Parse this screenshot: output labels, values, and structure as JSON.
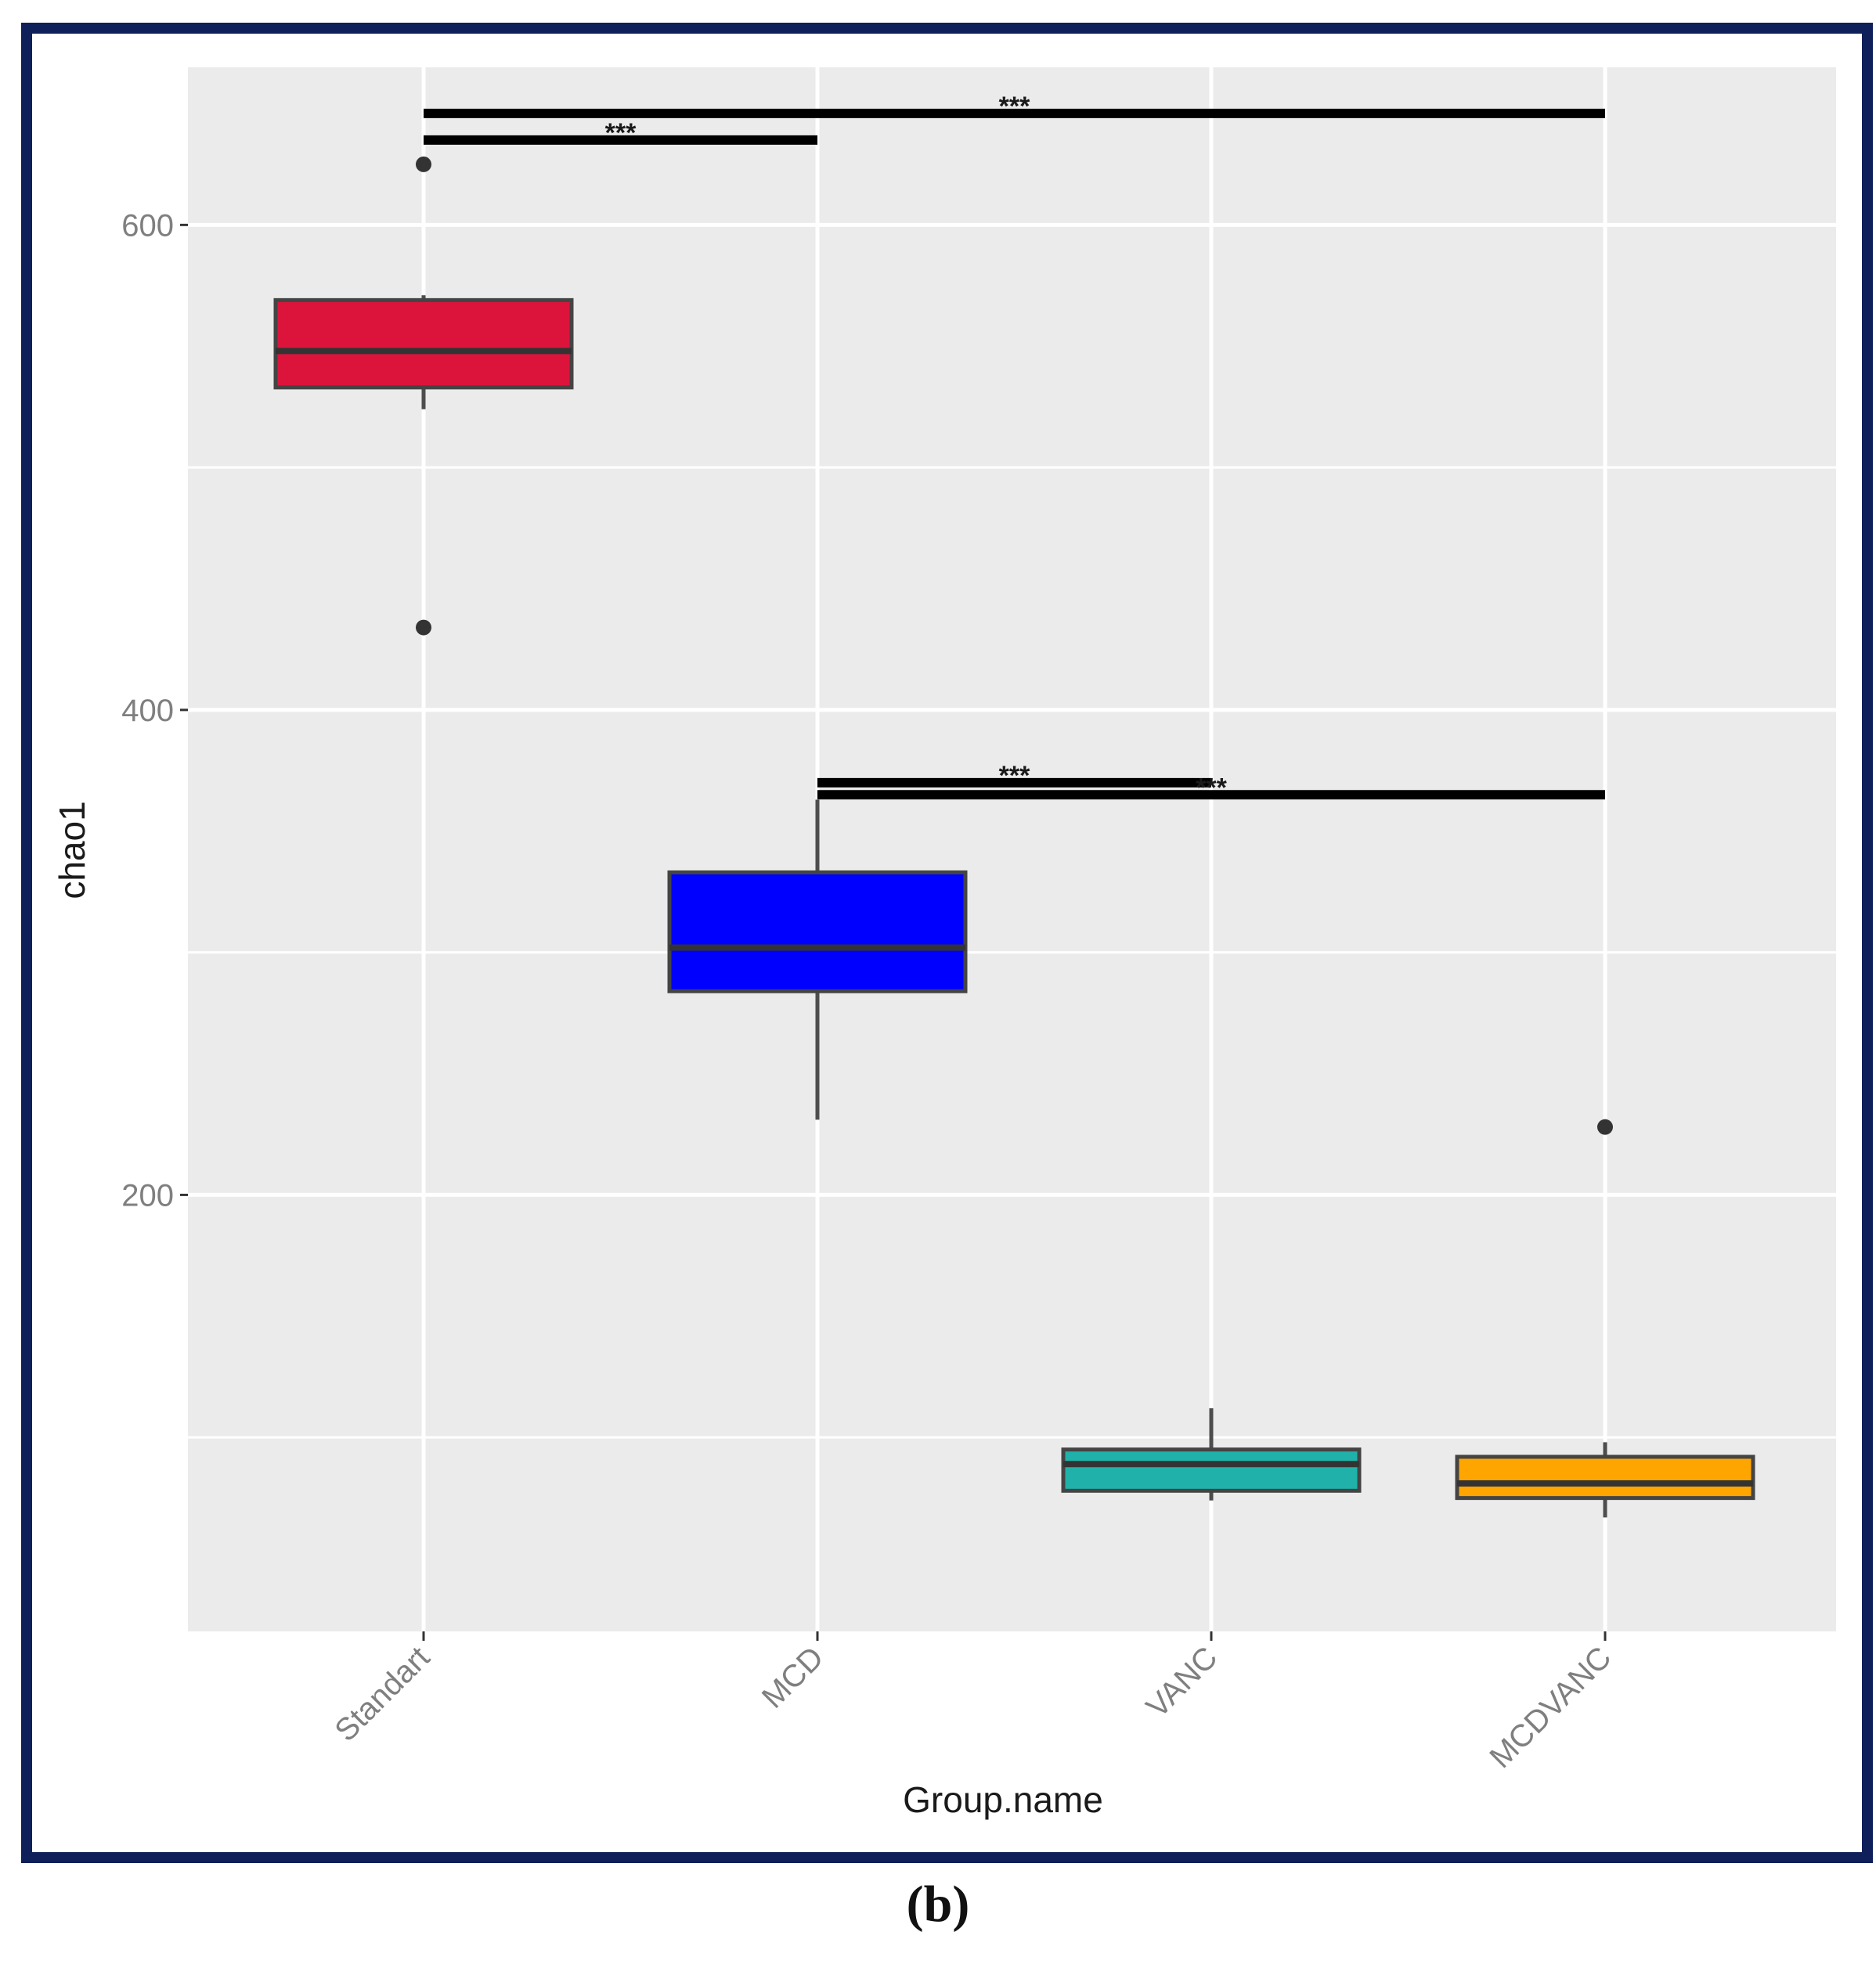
{
  "chart_data": {
    "type": "boxplot",
    "title": "",
    "xlabel": "Group.name",
    "ylabel": "chao1",
    "ylim": [
      20,
      665
    ],
    "y_ticks": [
      200,
      400,
      600
    ],
    "grid": true,
    "categories": [
      "Standart",
      "MCD",
      "VANC",
      "MCDVANC"
    ],
    "fill_colors": [
      "#dc143c",
      "#0000ff",
      "#20b2aa",
      "#ffa500"
    ],
    "boxes": [
      {
        "category": "Standart",
        "whisker_low": 524,
        "q1": 533,
        "median": 548,
        "q3": 569,
        "whisker_high": 571,
        "outliers": [
          625,
          434
        ]
      },
      {
        "category": "MCD",
        "whisker_low": 231,
        "q1": 284,
        "median": 302,
        "q3": 333,
        "whisker_high": 363,
        "outliers": []
      },
      {
        "category": "VANC",
        "whisker_low": 74,
        "q1": 78,
        "median": 89,
        "q3": 95,
        "whisker_high": 112,
        "outliers": []
      },
      {
        "category": "MCDVANC",
        "whisker_low": 67,
        "q1": 75,
        "median": 81,
        "q3": 92,
        "whisker_high": 98,
        "outliers": [
          228
        ]
      }
    ],
    "significance": [
      {
        "from": "Standart",
        "to": "MCDVANC",
        "y": 646,
        "label": "***"
      },
      {
        "from": "Standart",
        "to": "MCD",
        "y": 635,
        "label": "***"
      },
      {
        "from": "MCD",
        "to": "VANC",
        "y": 370,
        "label": "***"
      },
      {
        "from": "MCD",
        "to": "MCDVANC",
        "y": 365,
        "label": "***"
      }
    ]
  },
  "caption": "(b)"
}
